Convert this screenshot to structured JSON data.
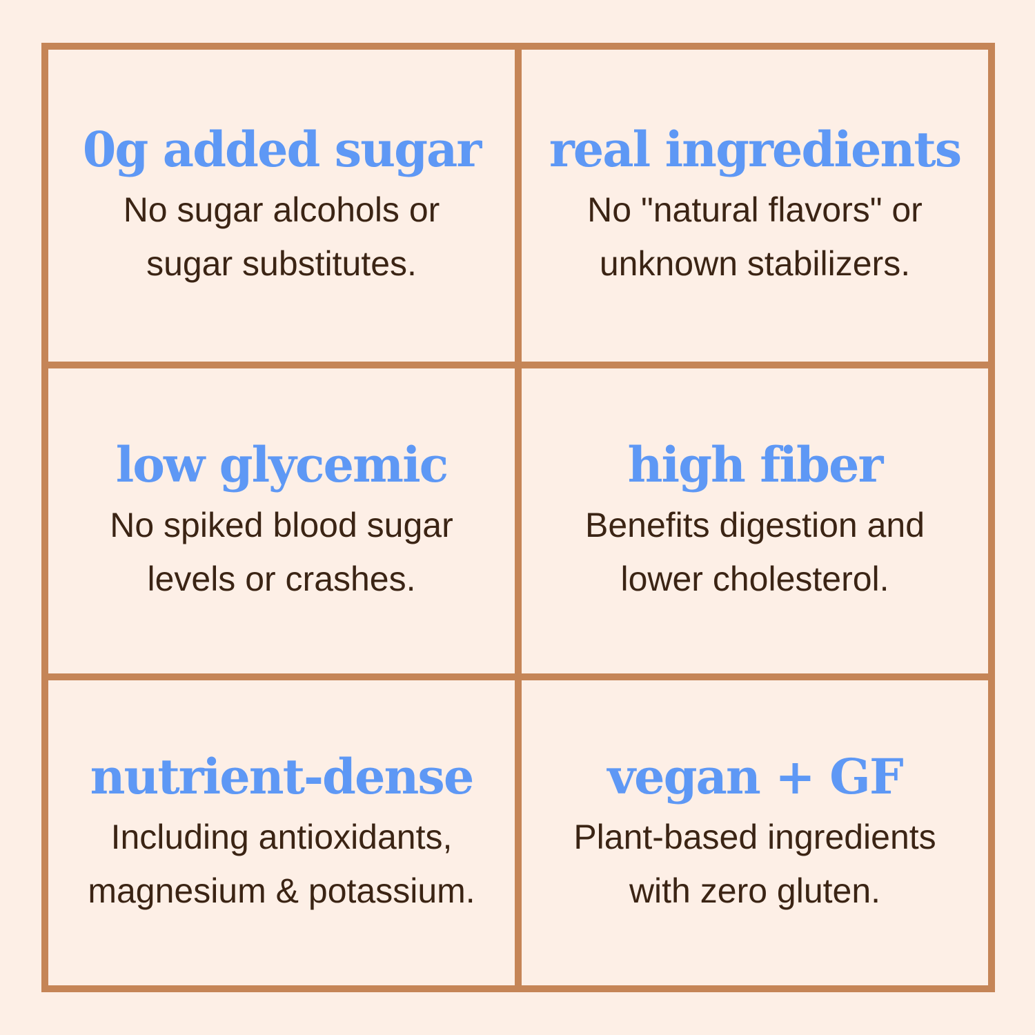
{
  "colors": {
    "background": "#fdefe6",
    "border": "#c58557",
    "title": "#5e98f5",
    "text": "#3b2414"
  },
  "cells": [
    {
      "title": "0g added sugar",
      "lines": [
        "No sugar alcohols or",
        "sugar substitutes."
      ]
    },
    {
      "title": "real ingredients",
      "lines": [
        "No \"natural flavors\" or",
        "unknown stabilizers."
      ]
    },
    {
      "title": "low glycemic",
      "lines": [
        "No spiked blood sugar",
        "levels or crashes."
      ]
    },
    {
      "title": "high fiber",
      "lines": [
        "Benefits digestion and",
        "lower cholesterol."
      ]
    },
    {
      "title": "nutrient-dense",
      "lines": [
        "Including antioxidants,",
        "magnesium & potassium."
      ]
    },
    {
      "title": "vegan + GF",
      "lines": [
        "Plant-based ingredients",
        "with zero gluten."
      ]
    }
  ]
}
